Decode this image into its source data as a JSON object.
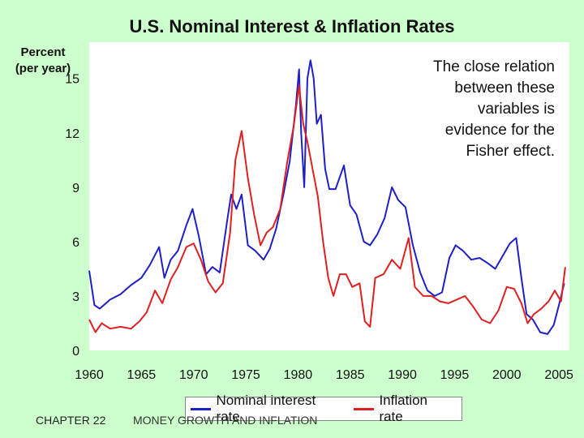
{
  "chart_data": {
    "type": "line",
    "title": "U.S. Nominal Interest & Inflation Rates",
    "ylabel": "Percent\n(per year)",
    "xlim": [
      1960,
      2006
    ],
    "ylim": [
      0,
      17
    ],
    "yticks": [
      0,
      3,
      6,
      9,
      12,
      15
    ],
    "xticks": [
      1960,
      1965,
      1970,
      1975,
      1980,
      1985,
      1990,
      1995,
      2000,
      2005
    ],
    "grid": false,
    "legend_position": "bottom",
    "series": [
      {
        "name": "Nominal interest rate",
        "color": "#1f1fc8",
        "x": [
          1960.0,
          1960.5,
          1961.0,
          1962.0,
          1963.0,
          1964.0,
          1965.0,
          1965.8,
          1966.7,
          1967.2,
          1967.8,
          1968.5,
          1969.3,
          1969.9,
          1970.5,
          1971.2,
          1971.8,
          1972.5,
          1973.2,
          1973.6,
          1974.1,
          1974.6,
          1975.2,
          1975.9,
          1976.7,
          1977.3,
          1977.9,
          1978.6,
          1979.2,
          1979.8,
          1980.1,
          1980.3,
          1980.6,
          1980.9,
          1981.2,
          1981.5,
          1981.8,
          1982.2,
          1982.6,
          1983.0,
          1983.6,
          1984.4,
          1985.0,
          1985.6,
          1986.3,
          1986.9,
          1987.6,
          1988.3,
          1989.0,
          1989.6,
          1990.3,
          1991.0,
          1991.7,
          1992.4,
          1993.1,
          1993.8,
          1994.5,
          1995.1,
          1995.8,
          1996.6,
          1997.4,
          1998.2,
          1998.9,
          1999.6,
          2000.3,
          2000.9,
          2001.4,
          2001.9,
          2002.5,
          2003.2,
          2003.9,
          2004.5,
          2005.0,
          2005.5
        ],
        "y": [
          4.4,
          2.5,
          2.3,
          2.8,
          3.1,
          3.6,
          4.0,
          4.7,
          5.7,
          4.0,
          5.0,
          5.5,
          6.9,
          7.8,
          6.3,
          4.2,
          4.6,
          4.3,
          7.1,
          8.6,
          7.8,
          8.6,
          5.8,
          5.5,
          5.0,
          5.6,
          6.7,
          8.6,
          10.4,
          13.5,
          15.5,
          12.0,
          9.0,
          15.0,
          16.0,
          15.0,
          12.5,
          13.0,
          10.0,
          8.9,
          8.9,
          10.2,
          8.0,
          7.5,
          6.0,
          5.8,
          6.4,
          7.3,
          9.0,
          8.3,
          7.9,
          5.8,
          4.3,
          3.3,
          3.0,
          3.2,
          5.1,
          5.8,
          5.5,
          5.0,
          5.1,
          4.8,
          4.5,
          5.2,
          5.9,
          6.2,
          4.0,
          2.0,
          1.7,
          1.0,
          0.9,
          1.4,
          2.5,
          3.7
        ]
      },
      {
        "name": "Inflation rate",
        "color": "#e02020",
        "x": [
          1960.0,
          1960.6,
          1961.2,
          1962.0,
          1963.0,
          1964.0,
          1964.8,
          1965.5,
          1966.3,
          1967.0,
          1967.8,
          1968.5,
          1969.3,
          1970.0,
          1970.7,
          1971.4,
          1972.1,
          1972.8,
          1973.5,
          1974.0,
          1974.6,
          1975.2,
          1975.8,
          1976.4,
          1977.0,
          1977.6,
          1978.3,
          1979.0,
          1979.6,
          1980.1,
          1980.5,
          1980.9,
          1981.4,
          1981.9,
          1982.4,
          1982.9,
          1983.4,
          1984.0,
          1984.6,
          1985.2,
          1985.9,
          1986.4,
          1986.9,
          1987.4,
          1988.2,
          1989.0,
          1989.8,
          1990.6,
          1991.2,
          1992.0,
          1992.8,
          1993.6,
          1994.4,
          1995.2,
          1996.0,
          1996.8,
          1997.6,
          1998.4,
          1999.2,
          2000.0,
          2000.7,
          2001.4,
          2002.0,
          2002.6,
          2003.3,
          2004.0,
          2004.6,
          2005.2,
          2005.6
        ],
        "y": [
          1.7,
          1.0,
          1.5,
          1.2,
          1.3,
          1.2,
          1.6,
          2.1,
          3.3,
          2.6,
          3.9,
          4.6,
          5.7,
          5.9,
          5.0,
          3.8,
          3.2,
          3.7,
          6.5,
          10.5,
          12.1,
          9.5,
          7.5,
          5.8,
          6.5,
          6.8,
          7.8,
          10.5,
          12.4,
          14.6,
          12.5,
          11.5,
          10.0,
          8.5,
          6.0,
          4.0,
          3.0,
          4.2,
          4.2,
          3.5,
          3.7,
          1.6,
          1.3,
          4.0,
          4.2,
          5.0,
          4.5,
          6.2,
          3.5,
          3.0,
          3.0,
          2.7,
          2.6,
          2.8,
          3.0,
          2.4,
          1.7,
          1.5,
          2.2,
          3.5,
          3.4,
          2.6,
          1.5,
          2.0,
          2.3,
          2.7,
          3.3,
          2.7,
          4.6
        ]
      }
    ]
  },
  "annotation": "The close relation\nbetween these\nvariables is\nevidence for the\nFisher effect.",
  "footer": {
    "chapter": "CHAPTER 22",
    "subtitle": "MONEY GROWTH AND INFLATION"
  }
}
